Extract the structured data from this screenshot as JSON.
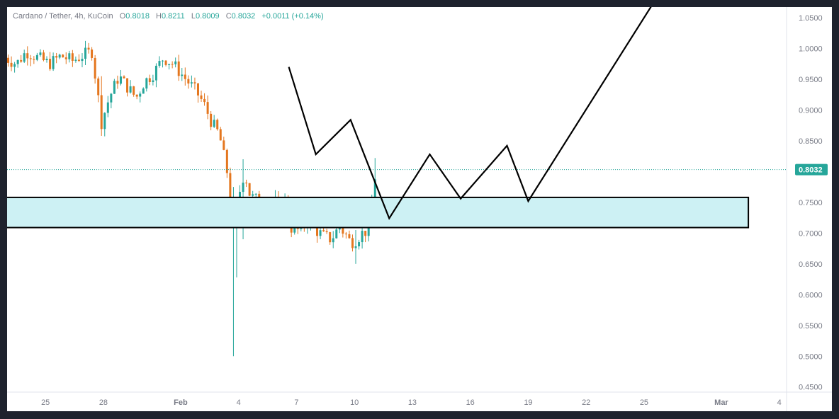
{
  "legend": {
    "symbol": "Cardano / Tether, 4h, KuCoin",
    "open_label": "O",
    "open": "0.8018",
    "high_label": "H",
    "high": "0.8211",
    "low_label": "L",
    "low": "0.8009",
    "close_label": "C",
    "close": "0.8032",
    "change": "+0.0011 (+0.14%)"
  },
  "colors": {
    "up": "#26a69a",
    "down": "#e4761e",
    "zone_fill": "#cdf1f4",
    "drawing": "#000000",
    "price_tag": "#26a69a"
  },
  "chart_data": {
    "type": "candlestick",
    "timeframe": "4h",
    "y_ticks": [
      "1.0500",
      "1.0000",
      "0.9500",
      "0.9000",
      "0.8500",
      "0.8000",
      "0.7500",
      "0.7000",
      "0.6500",
      "0.6000",
      "0.5500",
      "0.5000",
      "0.4500"
    ],
    "x_ticks": [
      {
        "label": "25",
        "day": 25,
        "bold": false
      },
      {
        "label": "28",
        "day": 28,
        "bold": false
      },
      {
        "label": "Feb",
        "day": 32,
        "bold": true
      },
      {
        "label": "4",
        "day": 35,
        "bold": false
      },
      {
        "label": "7",
        "day": 38,
        "bold": false
      },
      {
        "label": "10",
        "day": 41,
        "bold": false
      },
      {
        "label": "13",
        "day": 44,
        "bold": false
      },
      {
        "label": "16",
        "day": 47,
        "bold": false
      },
      {
        "label": "19",
        "day": 50,
        "bold": false
      },
      {
        "label": "22",
        "day": 53,
        "bold": false
      },
      {
        "label": "25",
        "day": 56,
        "bold": false
      },
      {
        "label": "Mar",
        "day": 60,
        "bold": true
      },
      {
        "label": "4",
        "day": 63,
        "bold": false
      }
    ],
    "ylim": [
      0.44,
      1.065
    ],
    "last_price": "0.8032",
    "zone": {
      "top": 0.758,
      "bottom": 0.709,
      "day_start": 22.9,
      "day_end": 61.4
    },
    "projection_path": [
      [
        37.6,
        0.97
      ],
      [
        39.0,
        0.828
      ],
      [
        40.8,
        0.884
      ],
      [
        42.8,
        0.724
      ],
      [
        44.9,
        0.828
      ],
      [
        46.5,
        0.756
      ],
      [
        48.9,
        0.842
      ],
      [
        50.0,
        0.752
      ],
      [
        56.4,
        1.07
      ]
    ],
    "anchors": [
      [
        22.9,
        0.985
      ],
      [
        23.5,
        0.975
      ],
      [
        24.0,
        0.995
      ],
      [
        24.6,
        0.985
      ],
      [
        25.2,
        0.975
      ],
      [
        25.8,
        0.988
      ],
      [
        26.4,
        0.98
      ],
      [
        27.0,
        0.99
      ],
      [
        27.4,
        0.995
      ],
      [
        27.6,
        0.95
      ],
      [
        27.9,
        0.88
      ],
      [
        28.3,
        0.92
      ],
      [
        28.8,
        0.955
      ],
      [
        29.3,
        0.935
      ],
      [
        29.7,
        0.92
      ],
      [
        30.1,
        0.945
      ],
      [
        30.6,
        0.96
      ],
      [
        31.1,
        0.985
      ],
      [
        31.6,
        0.975
      ],
      [
        32.0,
        0.96
      ],
      [
        32.4,
        0.945
      ],
      [
        32.8,
        0.93
      ],
      [
        33.2,
        0.91
      ],
      [
        33.6,
        0.88
      ],
      [
        34.0,
        0.86
      ],
      [
        34.4,
        0.8
      ],
      [
        34.55,
        0.72
      ],
      [
        34.75,
        0.71
      ],
      [
        35.0,
        0.76
      ],
      [
        35.3,
        0.8
      ],
      [
        35.6,
        0.76
      ],
      [
        35.9,
        0.755
      ],
      [
        36.3,
        0.752
      ],
      [
        36.6,
        0.76
      ],
      [
        36.9,
        0.75
      ],
      [
        37.1,
        0.745
      ],
      [
        37.5,
        0.755
      ],
      [
        37.75,
        0.705
      ],
      [
        38.2,
        0.705
      ],
      [
        38.6,
        0.72
      ],
      [
        39.0,
        0.705
      ],
      [
        39.4,
        0.695
      ],
      [
        39.8,
        0.69
      ],
      [
        40.2,
        0.71
      ],
      [
        40.5,
        0.7
      ],
      [
        40.8,
        0.685
      ],
      [
        41.1,
        0.69
      ],
      [
        41.4,
        0.7
      ],
      [
        41.7,
        0.705
      ],
      [
        41.9,
        0.75
      ],
      [
        42.1,
        0.8
      ],
      [
        42.22,
        0.8032
      ]
    ],
    "events": [
      {
        "day": 34.75,
        "low": 0.5,
        "high": 0.775
      },
      {
        "day": 34.9,
        "low": 0.628,
        "high": 0.72
      },
      {
        "day": 35.2,
        "low": 0.69,
        "high": 0.82
      },
      {
        "day": 27.9,
        "low": 0.858,
        "high": 0.955
      },
      {
        "day": 41.0,
        "low": 0.65,
        "high": 0.705
      },
      {
        "day": 42.1,
        "low": 0.75,
        "high": 0.822
      }
    ]
  }
}
